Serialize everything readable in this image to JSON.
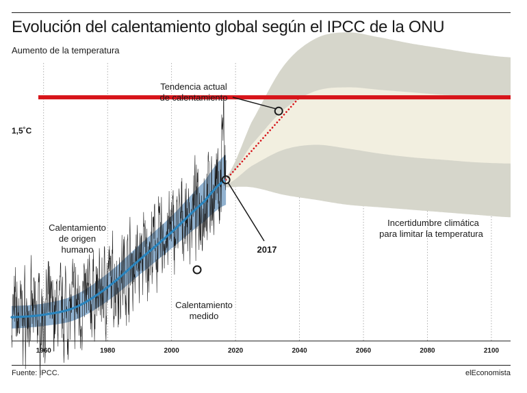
{
  "header": {
    "title": "Evolución del calentamiento global según el IPCC de la ONU",
    "subtitle": "Aumento de la temperatura"
  },
  "footer": {
    "source": "Fuente: IPCC.",
    "brand": "elEconomista"
  },
  "chart_data": {
    "type": "line",
    "title": "Evolución del calentamiento global según el IPCC de la ONU",
    "subtitle": "Aumento de la temperatura",
    "xlabel": "",
    "ylabel": "Aumento de la temperatura",
    "xlim": [
      1950,
      2106
    ],
    "x_ticks": [
      "1960",
      "1980",
      "2000",
      "2020",
      "2040",
      "2060",
      "2080",
      "2100"
    ],
    "y_range_celsius": [
      -0.45,
      1.95
    ],
    "threshold": {
      "label": "1,5˚C",
      "value": 1.5,
      "color": "#d7141a"
    },
    "series": [
      {
        "name": "Calentamiento medido",
        "color": "#1a1a1a",
        "x_range": [
          1950,
          2017
        ],
        "style": "noisy monthly line"
      },
      {
        "name": "Calentamiento de origen humano",
        "color": "#2a84bd",
        "x": [
          1950,
          1960,
          1970,
          1980,
          1990,
          2000,
          2010,
          2017
        ],
        "y": [
          -0.26,
          -0.24,
          -0.18,
          -0.02,
          0.2,
          0.42,
          0.66,
          0.84
        ],
        "band_half_width": [
          0.09,
          0.09,
          0.1,
          0.11,
          0.12,
          0.13,
          0.16,
          0.2
        ],
        "band_color": "#7ea4c8"
      },
      {
        "name": "Tendencia actual de calentamiento",
        "color": "#d7141a",
        "style": "dotted",
        "x": [
          2017,
          2040
        ],
        "y": [
          0.84,
          1.5
        ]
      }
    ],
    "uncertainty": {
      "label_lines": [
        "Incertidumbre climática",
        "para limitar la temperatura"
      ],
      "x": [
        2017,
        2025,
        2035,
        2045,
        2055,
        2065,
        2075,
        2085,
        2095,
        2106
      ],
      "outer_high": [
        0.86,
        1.3,
        1.75,
        1.97,
        2.02,
        1.98,
        1.93,
        1.89,
        1.85,
        1.82
      ],
      "inner_high": [
        0.84,
        1.12,
        1.4,
        1.55,
        1.58,
        1.56,
        1.54,
        1.52,
        1.51,
        1.5
      ],
      "inner_low": [
        0.8,
        0.95,
        1.08,
        1.12,
        1.09,
        1.05,
        1.02,
        1.0,
        0.98,
        0.97
      ],
      "outer_low": [
        0.78,
        0.78,
        0.72,
        0.68,
        0.64,
        0.62,
        0.6,
        0.58,
        0.56,
        0.54
      ],
      "outer_color": "#d6d6cb",
      "inner_color": "#f2efe0"
    },
    "annotations": [
      {
        "id": "tendencia",
        "lines": [
          "Tendencia actual",
          "de calentamiento"
        ],
        "marker": [
          2033.5,
          1.39
        ]
      },
      {
        "id": "origen",
        "lines": [
          "Calentamiento",
          "de origen",
          "humano"
        ]
      },
      {
        "id": "medido",
        "lines": [
          "Calentamiento",
          "medido"
        ],
        "marker": [
          2008,
          0.12
        ]
      },
      {
        "id": "year2017",
        "lines": [
          "2017"
        ],
        "marker": [
          2017,
          0.84
        ]
      }
    ],
    "grid": "vertical dotted"
  }
}
